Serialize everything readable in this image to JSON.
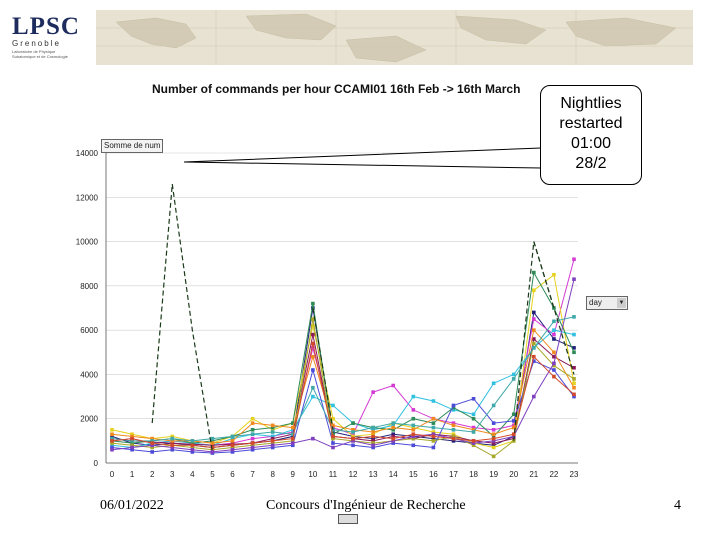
{
  "logo": {
    "main": "LPSC",
    "sub": "Grenoble",
    "line1": "Laboratoire de Physique",
    "line2": "Subatomique et de Cosmologie"
  },
  "chart_data": {
    "type": "line",
    "title": "Number of commands per hour CCAMI01 16th Feb -> 16th March",
    "xlabel": "",
    "ylabel": "",
    "categories": [
      "0",
      "1",
      "2",
      "3",
      "4",
      "5",
      "6",
      "7",
      "8",
      "9",
      "10",
      "11",
      "12",
      "13",
      "14",
      "15",
      "16",
      "17",
      "18",
      "19",
      "20",
      "21",
      "22",
      "23"
    ],
    "y_ticks": [
      "0",
      "2000",
      "4000",
      "6000",
      "8000",
      "10000",
      "12000",
      "14000"
    ],
    "ylim": [
      0,
      14000
    ],
    "grid": "horizontal",
    "legend_label": "Somme de num",
    "dropdown_label": "day",
    "annotation": [
      "Nightlies",
      "restarted",
      "01:00",
      "28/2"
    ],
    "highlight_series": {
      "values": [
        1300,
        null,
        1800,
        12600,
        null,
        null,
        null,
        null,
        null,
        null,
        7000,
        1500,
        null,
        null,
        null,
        null,
        null,
        null,
        null,
        null,
        null,
        10000,
        7000,
        4000
      ]
    },
    "series": [
      {
        "color": "#1f1f7a",
        "values": [
          1200,
          900,
          800,
          900,
          800,
          700,
          800,
          900,
          1000,
          1200,
          7000,
          1400,
          1200,
          1100,
          1300,
          1200,
          1100,
          1000,
          900,
          800,
          1200,
          6800,
          5600,
          5200
        ]
      },
      {
        "color": "#d33ad3",
        "values": [
          1000,
          1100,
          900,
          1000,
          900,
          800,
          900,
          1100,
          1200,
          1400,
          5200,
          1600,
          1300,
          3200,
          3500,
          2400,
          2000,
          1800,
          1600,
          1500,
          1700,
          6500,
          5800,
          9200
        ]
      },
      {
        "color": "#e6d21e",
        "values": [
          1500,
          1300,
          1100,
          1200,
          1000,
          900,
          1200,
          2000,
          1500,
          1800,
          6200,
          2000,
          1200,
          1300,
          1800,
          1600,
          1400,
          1300,
          900,
          700,
          1000,
          7800,
          8500,
          3600
        ]
      },
      {
        "color": "#30c0e0",
        "values": [
          800,
          700,
          900,
          1000,
          900,
          800,
          1100,
          1300,
          1200,
          1500,
          3000,
          2600,
          1800,
          1500,
          1700,
          3000,
          2800,
          2400,
          2200,
          3600,
          4000,
          5200,
          6000,
          5800
        ]
      },
      {
        "color": "#8b1a5a",
        "values": [
          1100,
          1000,
          950,
          900,
          850,
          800,
          850,
          900,
          1100,
          1300,
          5800,
          1200,
          1100,
          1000,
          1200,
          1100,
          1300,
          1200,
          1000,
          900,
          1100,
          5600,
          4800,
          4300
        ]
      },
      {
        "color": "#2e8b57",
        "values": [
          1000,
          900,
          1000,
          1100,
          900,
          1000,
          1200,
          1500,
          1600,
          1800,
          7200,
          1300,
          1800,
          1600,
          1500,
          2000,
          1800,
          2500,
          2000,
          1200,
          2200,
          8600,
          7000,
          5000
        ]
      },
      {
        "color": "#f08a1e",
        "values": [
          1300,
          1200,
          1100,
          1000,
          1000,
          900,
          1000,
          1800,
          1700,
          1600,
          4800,
          1700,
          1500,
          1400,
          1600,
          1500,
          2000,
          1700,
          1500,
          1300,
          1600,
          6000,
          5000,
          3400
        ]
      },
      {
        "color": "#4b4bd8",
        "values": [
          700,
          600,
          500,
          600,
          500,
          450,
          500,
          600,
          700,
          800,
          4200,
          900,
          800,
          700,
          900,
          800,
          700,
          2600,
          2900,
          1800,
          1900,
          4600,
          4200,
          3000
        ]
      },
      {
        "color": "#a8a82a",
        "values": [
          900,
          800,
          700,
          800,
          700,
          600,
          700,
          800,
          900,
          1000,
          6500,
          1100,
          1000,
          900,
          1000,
          1100,
          1000,
          1200,
          800,
          300,
          1000,
          5400,
          4400,
          3800
        ]
      },
      {
        "color": "#7f3fbf",
        "values": [
          600,
          700,
          800,
          700,
          600,
          500,
          600,
          700,
          800,
          900,
          1100,
          700,
          1000,
          800,
          1000,
          1200,
          1300,
          1100,
          900,
          1000,
          1200,
          3000,
          4500,
          8300
        ]
      },
      {
        "color": "#3fa8a8",
        "values": [
          1100,
          1000,
          1000,
          1100,
          1000,
          1100,
          1200,
          1300,
          1400,
          1300,
          3400,
          1500,
          1400,
          1600,
          1800,
          1700,
          1600,
          1500,
          1400,
          2600,
          3800,
          5200,
          6400,
          6600
        ]
      },
      {
        "color": "#d24a2b",
        "values": [
          1000,
          1100,
          900,
          800,
          800,
          700,
          800,
          900,
          1000,
          1100,
          5400,
          1200,
          1100,
          1200,
          1100,
          1300,
          1200,
          1100,
          1000,
          1100,
          1300,
          4800,
          3900,
          3100
        ]
      }
    ]
  },
  "footer": {
    "date": "06/01/2022",
    "center": "Concours d'Ingénieur de Recherche",
    "page": "4"
  }
}
